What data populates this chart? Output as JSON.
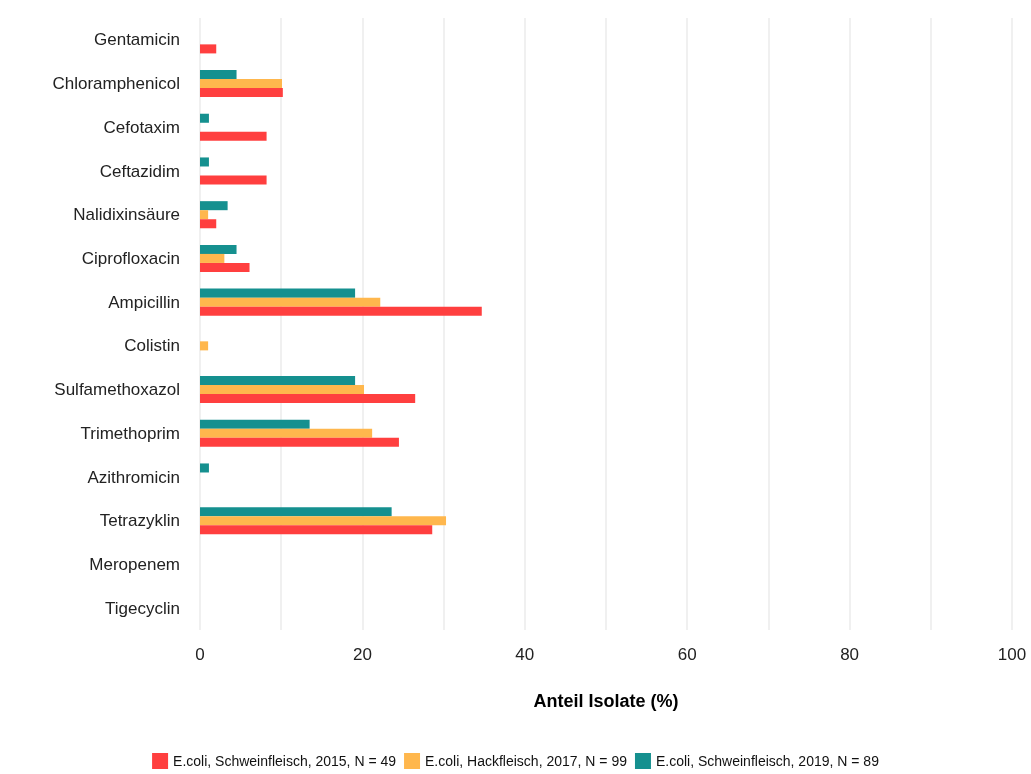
{
  "chart_data": {
    "type": "bar",
    "orientation": "horizontal",
    "xlabel": "Anteil Isolate (%)",
    "categories": [
      "Gentamicin",
      "Chloramphenicol",
      "Cefotaxim",
      "Ceftazidim",
      "Nalidixinsäure",
      "Ciprofloxacin",
      "Ampicillin",
      "Colistin",
      "Sulfamethoxazol",
      "Trimethoprim",
      "Azithromicin",
      "Tetrazyklin",
      "Meropenem",
      "Tigecyclin"
    ],
    "series": [
      {
        "name": "E.coli, Schweinfleisch, 2015, N = 49",
        "color": "#ff3f3f",
        "values": [
          2.0,
          10.2,
          8.2,
          8.2,
          2.0,
          6.1,
          34.7,
          0,
          26.5,
          24.5,
          0,
          28.6,
          0,
          0
        ]
      },
      {
        "name": "E.coli, Hackfleisch, 2017, N = 99",
        "color": "#ffb74d",
        "values": [
          0,
          10.1,
          0,
          0,
          1.0,
          3.0,
          22.2,
          1.0,
          20.2,
          21.2,
          0,
          30.3,
          0,
          0
        ]
      },
      {
        "name": "E.coli, Schweinfleisch, 2019, N = 89",
        "color": "#15908f",
        "values": [
          0,
          4.5,
          1.1,
          1.1,
          3.4,
          4.5,
          19.1,
          0,
          19.1,
          13.5,
          1.1,
          23.6,
          0,
          0
        ]
      }
    ],
    "xlim": [
      0,
      100
    ],
    "xticks": [
      0,
      {
        "value": 10,
        "label": null
      },
      20,
      {
        "value": 30,
        "label": null
      },
      40,
      {
        "value": 50,
        "label": null
      },
      60,
      {
        "value": 70,
        "label": null
      },
      80,
      {
        "value": 90,
        "label": null
      },
      100
    ],
    "grid": "x",
    "legend": "bottom"
  }
}
